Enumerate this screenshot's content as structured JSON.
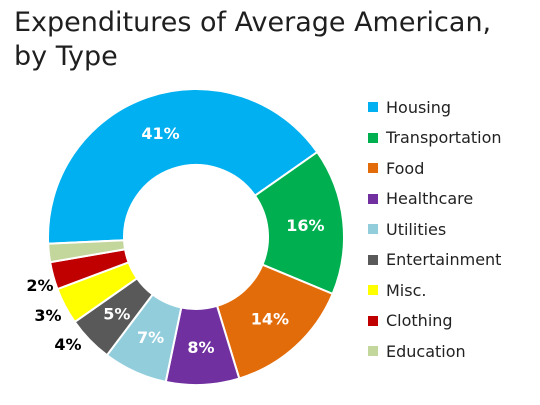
{
  "chart_data": {
    "type": "pie",
    "title": "Expenditures of Average American, by Type",
    "title_lines": [
      "Expenditures of Average American,",
      "by Type"
    ],
    "style": "donut",
    "legend_position": "right",
    "slices": [
      {
        "label": "Housing",
        "value": 41,
        "value_label": "41%",
        "color": "#00b0f0",
        "label_color": "#ffffff"
      },
      {
        "label": "Transportation",
        "value": 16,
        "value_label": "16%",
        "color": "#00b050",
        "label_color": "#ffffff"
      },
      {
        "label": "Food",
        "value": 14,
        "value_label": "14%",
        "color": "#e36c0a",
        "label_color": "#ffffff"
      },
      {
        "label": "Healthcare",
        "value": 8,
        "value_label": "8%",
        "color": "#7030a0",
        "label_color": "#ffffff"
      },
      {
        "label": "Utilities",
        "value": 7,
        "value_label": "7%",
        "color": "#92cddc",
        "label_color": "#ffffff"
      },
      {
        "label": "Entertainment",
        "value": 5,
        "value_label": "5%",
        "color": "#595959",
        "label_color": "#ffffff"
      },
      {
        "label": "Misc.",
        "value": 4,
        "value_label": "4%",
        "color": "#ffff00",
        "label_color": "#000000"
      },
      {
        "label": "Clothing",
        "value": 3,
        "value_label": "3%",
        "color": "#c00000",
        "label_color": "#000000"
      },
      {
        "label": "Education",
        "value": 2,
        "value_label": "2%",
        "color": "#c3d69b",
        "label_color": "#000000"
      }
    ]
  }
}
